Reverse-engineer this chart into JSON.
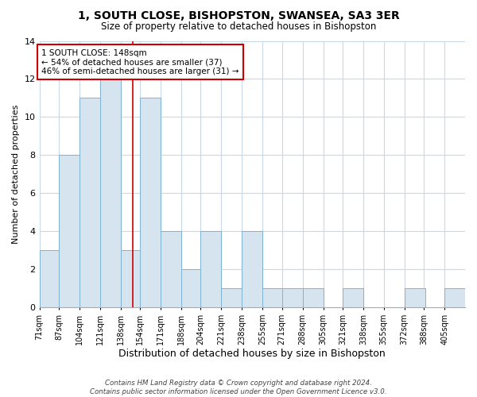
{
  "title": "1, SOUTH CLOSE, BISHOPSTON, SWANSEA, SA3 3ER",
  "subtitle": "Size of property relative to detached houses in Bishopston",
  "xlabel": "Distribution of detached houses by size in Bishopston",
  "ylabel": "Number of detached properties",
  "bin_labels": [
    "71sqm",
    "87sqm",
    "104sqm",
    "121sqm",
    "138sqm",
    "154sqm",
    "171sqm",
    "188sqm",
    "204sqm",
    "221sqm",
    "238sqm",
    "255sqm",
    "271sqm",
    "288sqm",
    "305sqm",
    "321sqm",
    "338sqm",
    "355sqm",
    "372sqm",
    "388sqm",
    "405sqm"
  ],
  "bin_edges": [
    71,
    87,
    104,
    121,
    138,
    154,
    171,
    188,
    204,
    221,
    238,
    255,
    271,
    288,
    305,
    321,
    338,
    355,
    372,
    388,
    405
  ],
  "bin_width": 17,
  "counts": [
    3,
    8,
    11,
    12,
    3,
    11,
    4,
    2,
    4,
    1,
    4,
    1,
    1,
    1,
    0,
    1,
    0,
    0,
    1,
    0,
    1
  ],
  "bar_color": "#d6e4f0",
  "bar_edge_color": "#7fb3d3",
  "property_size": 148,
  "vline_color": "#cc0000",
  "annotation_line1": "1 SOUTH CLOSE: 148sqm",
  "annotation_line2": "← 54% of detached houses are smaller (37)",
  "annotation_line3": "46% of semi-detached houses are larger (31) →",
  "annotation_box_edge_color": "#cc0000",
  "annotation_box_face_color": "#ffffff",
  "ylim": [
    0,
    14
  ],
  "yticks": [
    0,
    2,
    4,
    6,
    8,
    10,
    12,
    14
  ],
  "footer_text": "Contains HM Land Registry data © Crown copyright and database right 2024.\nContains public sector information licensed under the Open Government Licence v3.0.",
  "background_color": "#ffffff",
  "grid_color": "#c8d8e8"
}
